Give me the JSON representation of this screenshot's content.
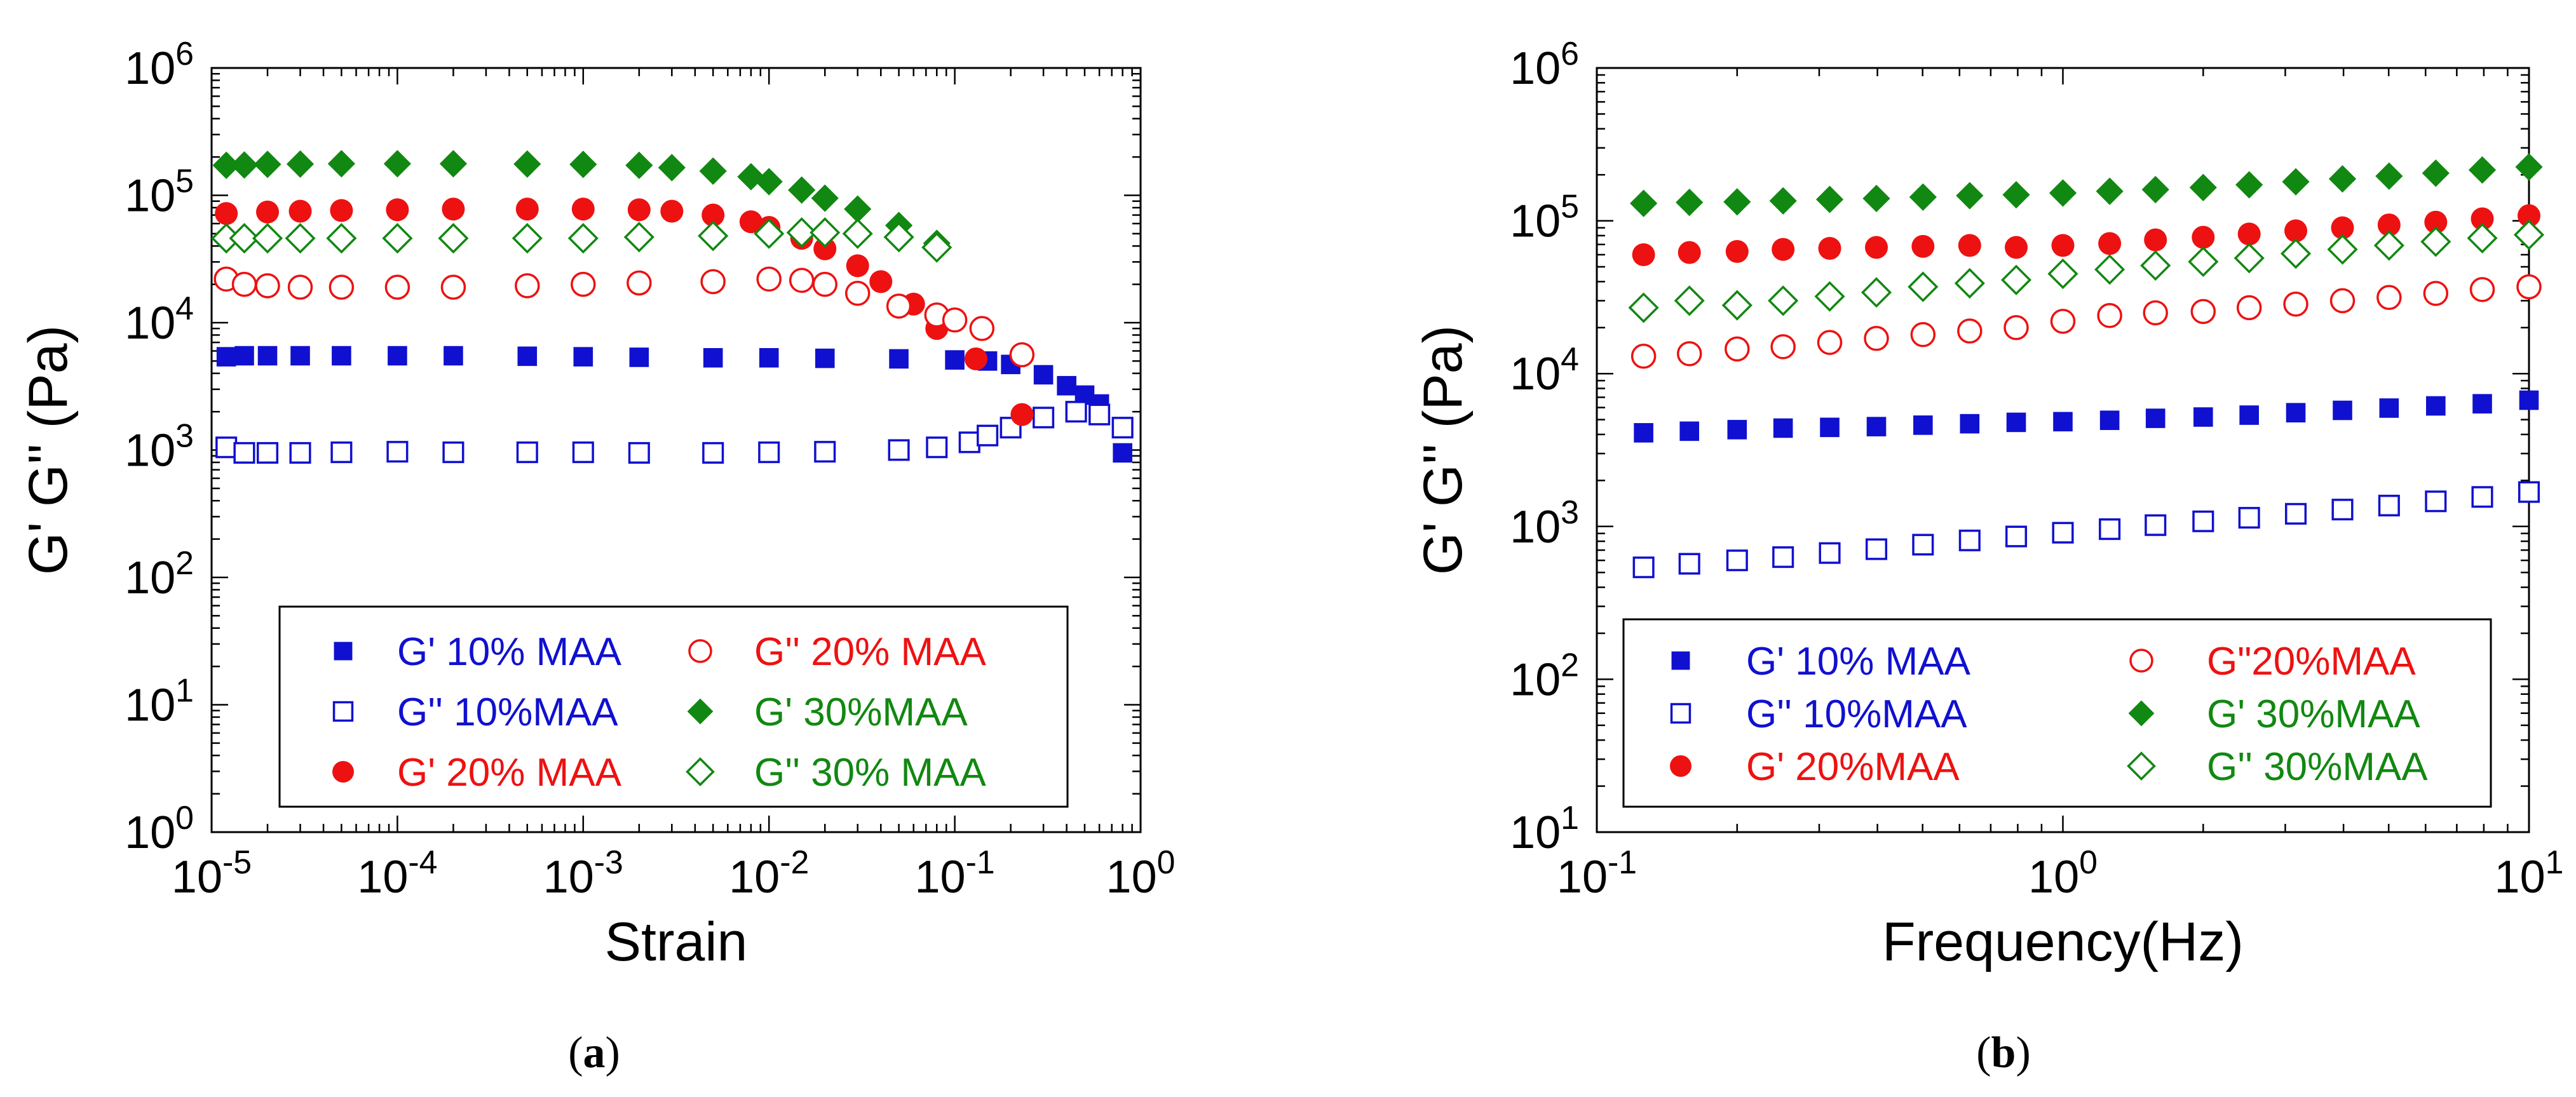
{
  "chart_data": [
    {
      "type": "scatter",
      "panel_label": "a",
      "title": "",
      "xlabel": "Strain",
      "ylabel": "G' G'' (Pa)",
      "xscale": "log",
      "yscale": "log",
      "xlim": [
        1e-05,
        1
      ],
      "ylim": [
        1,
        1000000
      ],
      "x_ticks": [
        {
          "base": "10",
          "exp": "-5"
        },
        {
          "base": "10",
          "exp": "-4"
        },
        {
          "base": "10",
          "exp": "-3"
        },
        {
          "base": "10",
          "exp": "-2"
        },
        {
          "base": "10",
          "exp": "-1"
        },
        {
          "base": "10",
          "exp": "0"
        }
      ],
      "y_ticks": [
        {
          "base": "10",
          "exp": "0"
        },
        {
          "base": "10",
          "exp": "1"
        },
        {
          "base": "10",
          "exp": "2"
        },
        {
          "base": "10",
          "exp": "3"
        },
        {
          "base": "10",
          "exp": "4"
        },
        {
          "base": "10",
          "exp": "5"
        },
        {
          "base": "10",
          "exp": "6"
        }
      ],
      "legend_position": "bottom",
      "series": [
        {
          "name": "G' 10% MAA",
          "color": "#1010d0",
          "marker": "square",
          "filled": true,
          "x": [
            1.2e-05,
            1.5e-05,
            2e-05,
            3e-05,
            5e-05,
            0.0001,
            0.0002,
            0.0005,
            0.001,
            0.002,
            0.005,
            0.01,
            0.02,
            0.05,
            0.1,
            0.15,
            0.2,
            0.3,
            0.4,
            0.5,
            0.6,
            0.8
          ],
          "y": [
            5400,
            5500,
            5500,
            5500,
            5500,
            5500,
            5500,
            5450,
            5400,
            5350,
            5300,
            5300,
            5250,
            5200,
            5100,
            5000,
            4700,
            3900,
            3200,
            2700,
            2300,
            950
          ]
        },
        {
          "name": "G'' 10%MAA",
          "color": "#1010d0",
          "marker": "square",
          "filled": false,
          "x": [
            1.2e-05,
            1.5e-05,
            2e-05,
            3e-05,
            5e-05,
            0.0001,
            0.0002,
            0.0005,
            0.001,
            0.002,
            0.005,
            0.01,
            0.02,
            0.05,
            0.08,
            0.12,
            0.15,
            0.2,
            0.3,
            0.45,
            0.6,
            0.8
          ],
          "y": [
            1050,
            950,
            950,
            950,
            960,
            970,
            960,
            960,
            960,
            950,
            950,
            960,
            970,
            1000,
            1050,
            1150,
            1300,
            1500,
            1800,
            2000,
            1900,
            1500
          ]
        },
        {
          "name": "G' 20% MAA",
          "color": "#ee1111",
          "marker": "circle",
          "filled": true,
          "x": [
            1.2e-05,
            2e-05,
            3e-05,
            5e-05,
            0.0001,
            0.0002,
            0.0005,
            0.001,
            0.002,
            0.003,
            0.005,
            0.008,
            0.01,
            0.015,
            0.02,
            0.03,
            0.04,
            0.06,
            0.08,
            0.13,
            0.23
          ],
          "y": [
            72000,
            74000,
            75000,
            76000,
            77000,
            78000,
            78000,
            78000,
            77000,
            75000,
            70000,
            62000,
            56000,
            46000,
            38000,
            28000,
            21000,
            14000,
            9000,
            5200,
            1900
          ]
        },
        {
          "name": "G'' 20% MAA",
          "color": "#ee1111",
          "marker": "circle",
          "filled": false,
          "x": [
            1.2e-05,
            1.5e-05,
            2e-05,
            3e-05,
            5e-05,
            0.0001,
            0.0002,
            0.0005,
            0.001,
            0.002,
            0.005,
            0.01,
            0.015,
            0.02,
            0.03,
            0.05,
            0.08,
            0.1,
            0.14,
            0.23
          ],
          "y": [
            22000,
            20000,
            19500,
            19000,
            19000,
            19000,
            19000,
            19500,
            20000,
            20500,
            21000,
            22000,
            21500,
            20000,
            17000,
            13500,
            11500,
            10500,
            9000,
            5600
          ]
        },
        {
          "name": "G' 30%MAA",
          "color": "#118811",
          "marker": "diamond",
          "filled": true,
          "x": [
            1.2e-05,
            1.5e-05,
            2e-05,
            3e-05,
            5e-05,
            0.0001,
            0.0002,
            0.0005,
            0.001,
            0.002,
            0.003,
            0.005,
            0.008,
            0.01,
            0.015,
            0.02,
            0.03,
            0.05,
            0.08
          ],
          "y": [
            172000,
            173000,
            175000,
            176000,
            177000,
            177000,
            177000,
            176000,
            175000,
            172000,
            165000,
            155000,
            140000,
            128000,
            110000,
            95000,
            78000,
            58000,
            42000
          ]
        },
        {
          "name": "G'' 30% MAA",
          "color": "#118811",
          "marker": "diamond",
          "filled": false,
          "x": [
            1.2e-05,
            1.5e-05,
            2e-05,
            3e-05,
            5e-05,
            0.0001,
            0.0002,
            0.0005,
            0.001,
            0.002,
            0.005,
            0.01,
            0.015,
            0.02,
            0.03,
            0.05,
            0.08
          ],
          "y": [
            46000,
            46000,
            46000,
            46000,
            46000,
            46000,
            46000,
            46000,
            46000,
            47000,
            48000,
            50000,
            51000,
            51000,
            50000,
            47000,
            39000
          ]
        }
      ]
    },
    {
      "type": "scatter",
      "panel_label": "b",
      "title": "",
      "xlabel": "Frequency(Hz)",
      "ylabel": "G' G'' (Pa)",
      "xscale": "log",
      "yscale": "log",
      "xlim": [
        0.1,
        10
      ],
      "ylim": [
        10,
        1000000
      ],
      "x_ticks": [
        {
          "base": "10",
          "exp": "-1"
        },
        {
          "base": "10",
          "exp": "0"
        },
        {
          "base": "10",
          "exp": "1"
        }
      ],
      "y_ticks": [
        {
          "base": "10",
          "exp": "1"
        },
        {
          "base": "10",
          "exp": "2"
        },
        {
          "base": "10",
          "exp": "3"
        },
        {
          "base": "10",
          "exp": "4"
        },
        {
          "base": "10",
          "exp": "5"
        },
        {
          "base": "10",
          "exp": "6"
        }
      ],
      "legend_position": "bottom",
      "x": [
        0.126,
        0.158,
        0.2,
        0.251,
        0.316,
        0.398,
        0.501,
        0.631,
        0.794,
        1.0,
        1.26,
        1.58,
        2.0,
        2.51,
        3.16,
        3.98,
        5.01,
        6.31,
        7.94,
        10.0
      ],
      "series": [
        {
          "name": "G' 10% MAA",
          "color": "#1010d0",
          "marker": "square",
          "filled": true,
          "y": [
            4100,
            4200,
            4300,
            4400,
            4450,
            4500,
            4600,
            4700,
            4800,
            4850,
            4950,
            5100,
            5200,
            5350,
            5550,
            5750,
            5950,
            6150,
            6350,
            6700
          ]
        },
        {
          "name": "G'' 10%MAA",
          "color": "#1010d0",
          "marker": "square",
          "filled": false,
          "y": [
            540,
            570,
            600,
            630,
            670,
            710,
            760,
            810,
            860,
            910,
            960,
            1020,
            1080,
            1140,
            1210,
            1290,
            1370,
            1460,
            1560,
            1680
          ]
        },
        {
          "name": "G' 20%MAA",
          "color": "#ee1111",
          "marker": "circle",
          "filled": true,
          "y": [
            60000,
            62000,
            63000,
            65000,
            66000,
            67000,
            68000,
            69000,
            67000,
            69000,
            71000,
            75000,
            78000,
            82000,
            86000,
            90000,
            94000,
            98000,
            103000,
            108000
          ]
        },
        {
          "name": "G\"20%MAA",
          "color": "#ee1111",
          "marker": "circle",
          "filled": false,
          "y": [
            13000,
            13500,
            14500,
            15000,
            16000,
            17000,
            18000,
            19000,
            20000,
            22000,
            24000,
            25000,
            25500,
            27000,
            28500,
            30000,
            31500,
            33500,
            35500,
            37000
          ]
        },
        {
          "name": "G' 30%MAA",
          "color": "#118811",
          "marker": "diamond",
          "filled": true,
          "y": [
            130000,
            132000,
            133000,
            135000,
            138000,
            140000,
            143000,
            146000,
            148000,
            152000,
            156000,
            160000,
            165000,
            172000,
            180000,
            188000,
            196000,
            205000,
            215000,
            225000
          ]
        },
        {
          "name": "G'' 30%MAA",
          "color": "#118811",
          "marker": "diamond",
          "filled": false,
          "y": [
            27000,
            30000,
            28000,
            30000,
            32000,
            34000,
            37000,
            39000,
            41000,
            45000,
            48000,
            51000,
            54000,
            57000,
            61000,
            65000,
            69000,
            73000,
            77000,
            81000
          ]
        }
      ]
    }
  ]
}
